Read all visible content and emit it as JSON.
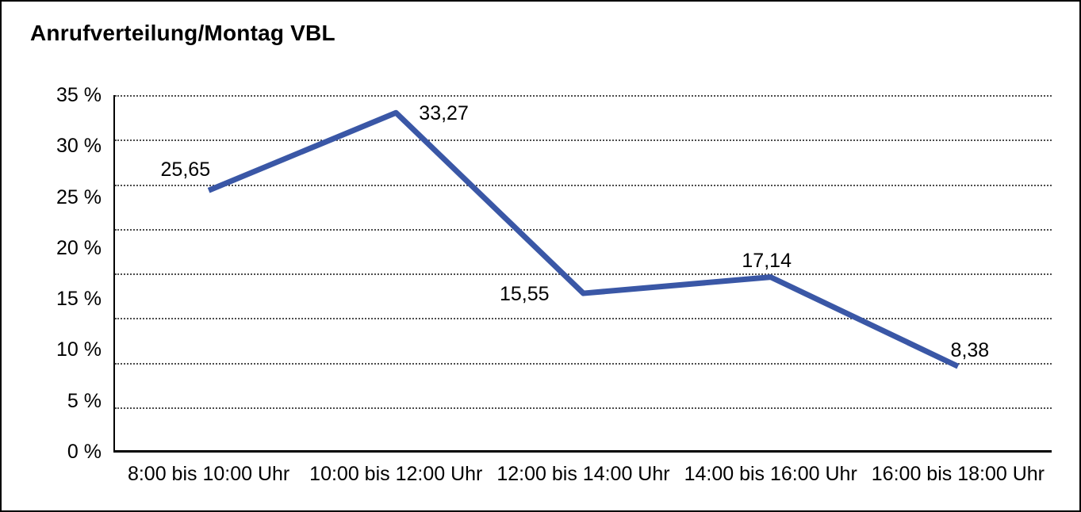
{
  "title": "Anrufverteilung/Montag VBL",
  "chart_data": {
    "type": "line",
    "title": "Anrufverteilung/Montag VBL",
    "categories": [
      "8:00 bis 10:00 Uhr",
      "10:00 bis 12:00 Uhr",
      "12:00 bis 14:00 Uhr",
      "14:00 bis 16:00 Uhr",
      "16:00 bis 18:00 Uhr"
    ],
    "values": [
      25.65,
      33.27,
      15.55,
      17.14,
      8.38
    ],
    "point_labels": [
      "25,65",
      "33,27",
      "15,55",
      "17,14",
      "8,38"
    ],
    "y_tick_labels": [
      "35 %",
      "30 %",
      "25 %",
      "20 %",
      "15 %",
      "10 %",
      "5 %",
      "0 %"
    ],
    "y_tick_values": [
      35,
      30,
      25,
      20,
      15,
      10,
      5,
      0
    ],
    "ylim": [
      0,
      35
    ],
    "xlabel": "",
    "ylabel": "",
    "grid": {
      "horizontal_intervals": 8,
      "style": "dotted",
      "vertical": false
    },
    "legend": "none",
    "line_color": "#3A57A6",
    "text_color": "#000000",
    "background_color": "#FFFFFF"
  }
}
